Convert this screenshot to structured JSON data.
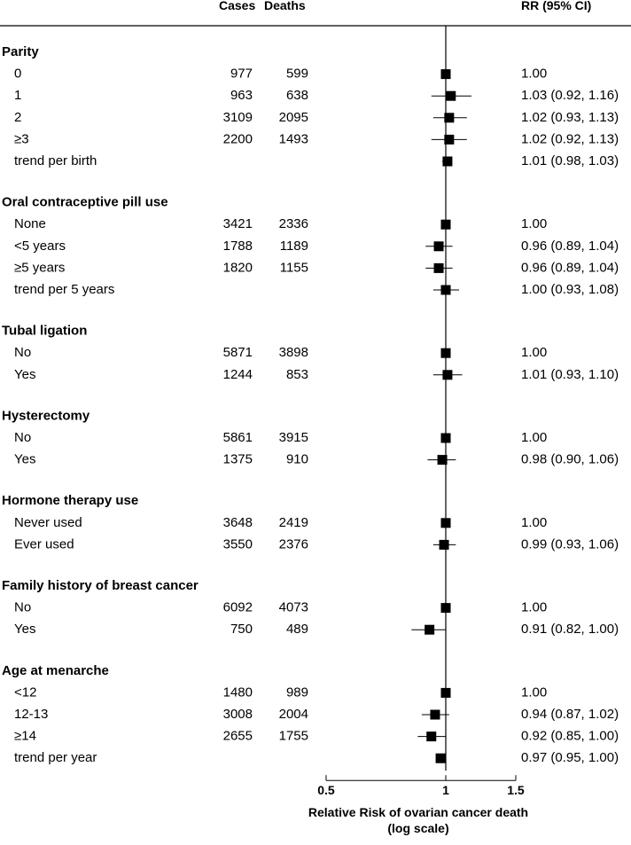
{
  "header": {
    "cases_label": "Cases",
    "deaths_label": "Deaths",
    "rr_label": "RR (95% CI)"
  },
  "chart_data": {
    "type": "forest",
    "xlabel_line1": "Relative Risk of ovarian cancer death",
    "xlabel_line2": "(log scale)",
    "x_scale": "log",
    "x_ticks": [
      0.5,
      1,
      1.5
    ],
    "x_tick_labels": [
      "0.5",
      "1",
      "1.5"
    ],
    "reference_line": 1,
    "groups": [
      {
        "title": "Parity",
        "rows": [
          {
            "label": "0",
            "cases": "977",
            "deaths": "599",
            "rr": 1.0,
            "lo": 1.0,
            "hi": 1.0,
            "text": "1.00"
          },
          {
            "label": "1",
            "cases": "963",
            "deaths": "638",
            "rr": 1.03,
            "lo": 0.92,
            "hi": 1.16,
            "text": "1.03 (0.92, 1.16)"
          },
          {
            "label": "2",
            "cases": "3109",
            "deaths": "2095",
            "rr": 1.02,
            "lo": 0.93,
            "hi": 1.13,
            "text": "1.02 (0.93, 1.13)"
          },
          {
            "label": "≥3",
            "cases": "2200",
            "deaths": "1493",
            "rr": 1.02,
            "lo": 0.92,
            "hi": 1.13,
            "text": "1.02 (0.92, 1.13)"
          },
          {
            "label": "trend per birth",
            "cases": "",
            "deaths": "",
            "rr": 1.01,
            "lo": 0.98,
            "hi": 1.03,
            "text": "1.01 (0.98, 1.03)"
          }
        ]
      },
      {
        "title": "Oral contraceptive pill use",
        "rows": [
          {
            "label": "None",
            "cases": "3421",
            "deaths": "2336",
            "rr": 1.0,
            "lo": 1.0,
            "hi": 1.0,
            "text": "1.00"
          },
          {
            "label": "<5 years",
            "cases": "1788",
            "deaths": "1189",
            "rr": 0.96,
            "lo": 0.89,
            "hi": 1.04,
            "text": "0.96 (0.89, 1.04)"
          },
          {
            "label": "≥5 years",
            "cases": "1820",
            "deaths": "1155",
            "rr": 0.96,
            "lo": 0.89,
            "hi": 1.04,
            "text": "0.96 (0.89, 1.04)"
          },
          {
            "label": "trend per 5 years",
            "cases": "",
            "deaths": "",
            "rr": 1.0,
            "lo": 0.93,
            "hi": 1.08,
            "text": "1.00 (0.93, 1.08)"
          }
        ]
      },
      {
        "title": "Tubal ligation",
        "rows": [
          {
            "label": "No",
            "cases": "5871",
            "deaths": "3898",
            "rr": 1.0,
            "lo": 1.0,
            "hi": 1.0,
            "text": "1.00"
          },
          {
            "label": "Yes",
            "cases": "1244",
            "deaths": "853",
            "rr": 1.01,
            "lo": 0.93,
            "hi": 1.1,
            "text": "1.01 (0.93, 1.10)"
          }
        ]
      },
      {
        "title": "Hysterectomy",
        "rows": [
          {
            "label": "No",
            "cases": "5861",
            "deaths": "3915",
            "rr": 1.0,
            "lo": 1.0,
            "hi": 1.0,
            "text": "1.00"
          },
          {
            "label": "Yes",
            "cases": "1375",
            "deaths": "910",
            "rr": 0.98,
            "lo": 0.9,
            "hi": 1.06,
            "text": "0.98 (0.90, 1.06)"
          }
        ]
      },
      {
        "title": "Hormone therapy use",
        "rows": [
          {
            "label": "Never used",
            "cases": "3648",
            "deaths": "2419",
            "rr": 1.0,
            "lo": 1.0,
            "hi": 1.0,
            "text": "1.00"
          },
          {
            "label": "Ever used",
            "cases": "3550",
            "deaths": "2376",
            "rr": 0.99,
            "lo": 0.93,
            "hi": 1.06,
            "text": "0.99 (0.93, 1.06)"
          }
        ]
      },
      {
        "title": "Family history of breast cancer",
        "rows": [
          {
            "label": "No",
            "cases": "6092",
            "deaths": "4073",
            "rr": 1.0,
            "lo": 1.0,
            "hi": 1.0,
            "text": "1.00"
          },
          {
            "label": "Yes",
            "cases": "750",
            "deaths": "489",
            "rr": 0.91,
            "lo": 0.82,
            "hi": 1.0,
            "text": "0.91 (0.82, 1.00)"
          }
        ]
      },
      {
        "title": "Age at menarche",
        "rows": [
          {
            "label": "<12",
            "cases": "1480",
            "deaths": "989",
            "rr": 1.0,
            "lo": 1.0,
            "hi": 1.0,
            "text": "1.00"
          },
          {
            "label": "12-13",
            "cases": "3008",
            "deaths": "2004",
            "rr": 0.94,
            "lo": 0.87,
            "hi": 1.02,
            "text": "0.94 (0.87, 1.02)"
          },
          {
            "label": "≥14",
            "cases": "2655",
            "deaths": "1755",
            "rr": 0.92,
            "lo": 0.85,
            "hi": 1.0,
            "text": "0.92 (0.85, 1.00)"
          },
          {
            "label": "trend per year",
            "cases": "",
            "deaths": "",
            "rr": 0.97,
            "lo": 0.95,
            "hi": 1.0,
            "text": "0.97 (0.95, 1.00)"
          }
        ]
      }
    ]
  }
}
